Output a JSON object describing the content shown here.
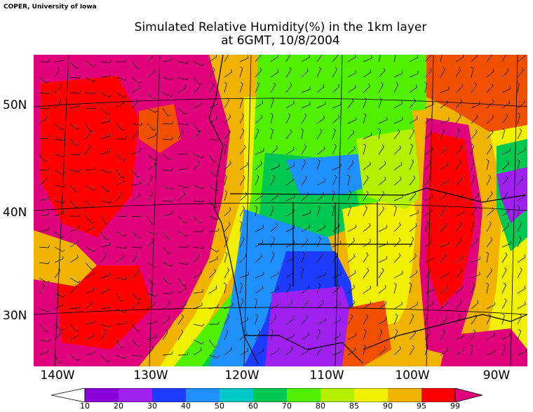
{
  "credit": "COPER, University of Iowa",
  "title_line1": "Simulated Relative Humidity(%) in the 1km layer",
  "title_line2": "at 6GMT, 10/8/2004",
  "lat_labels": [
    "50N",
    "40N",
    "30N"
  ],
  "lon_labels": [
    "140W",
    "130W",
    "120W",
    "110W",
    "100W",
    "90W"
  ],
  "colorbar_labels": [
    "10",
    "20",
    "30",
    "40",
    "50",
    "60",
    "70",
    "80",
    "85",
    "90",
    "95",
    "99"
  ],
  "colors": {
    "c10": "#8a00d8",
    "c20": "#a020f0",
    "c30": "#1e3cff",
    "c40": "#1e90ff",
    "c50": "#00c8c8",
    "c60": "#00c850",
    "c70": "#50f000",
    "c80": "#b4f000",
    "c85": "#f0f000",
    "c90": "#f0b400",
    "c95": "#f05000",
    "c99": "#ff0000",
    "c100": "#e0007c"
  }
}
